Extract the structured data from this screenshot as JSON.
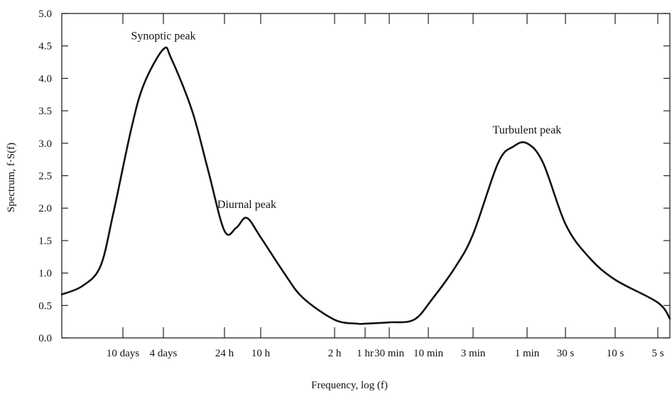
{
  "chart_data": {
    "type": "line",
    "title": "",
    "xlabel": "Frequency, log (f)",
    "ylabel": "Spectrum, f·S(f)",
    "ylim": [
      0,
      5
    ],
    "xscale": "log",
    "grid": false,
    "legend": "none",
    "yticks": [
      "0.0",
      "0.5",
      "1.0",
      "1.5",
      "2.0",
      "2.5",
      "3.0",
      "3.5",
      "4.0",
      "4.5",
      "5.0"
    ],
    "xticks": [
      "10 days",
      "4 days",
      "24 h",
      "10 h",
      "2 h",
      "1 hr",
      "30 min",
      "10 min",
      "3 min",
      "1 min",
      "30 s",
      "10 s",
      "5 s"
    ],
    "x_period_hours": [
      240,
      96,
      24,
      10,
      2,
      1,
      0.5,
      0.1667,
      0.05,
      0.01667,
      0.008333,
      0.002778,
      0.001389
    ],
    "series": [
      {
        "name": "",
        "x_period_hours": [
          1000,
          600,
          400,
          300,
          200,
          150,
          96,
          80,
          50,
          35,
          24,
          18,
          14,
          10,
          6,
          4,
          2,
          1.2,
          1,
          0.5,
          0.25,
          0.15,
          0.08,
          0.05,
          0.03,
          0.022,
          0.0167,
          0.0125,
          0.0083,
          0.005,
          0.0028,
          0.0014,
          0.0008
        ],
        "values": [
          0.67,
          0.8,
          1.1,
          1.9,
          3.2,
          3.9,
          4.45,
          4.3,
          3.5,
          2.6,
          1.65,
          1.7,
          1.85,
          1.55,
          1.0,
          0.62,
          0.28,
          0.22,
          0.22,
          0.24,
          0.28,
          0.6,
          1.1,
          1.6,
          2.7,
          2.95,
          3.0,
          2.7,
          1.75,
          1.25,
          0.9,
          0.55,
          0.3
        ]
      }
    ],
    "annotations": [
      {
        "text": "Synoptic peak",
        "x_period_hours": 96,
        "y": 4.45
      },
      {
        "text": "Diurnal peak",
        "x_period_hours": 14,
        "y": 1.85
      },
      {
        "text": "Turbulent peak",
        "x_period_hours": 0.0167,
        "y": 3.0
      }
    ]
  }
}
